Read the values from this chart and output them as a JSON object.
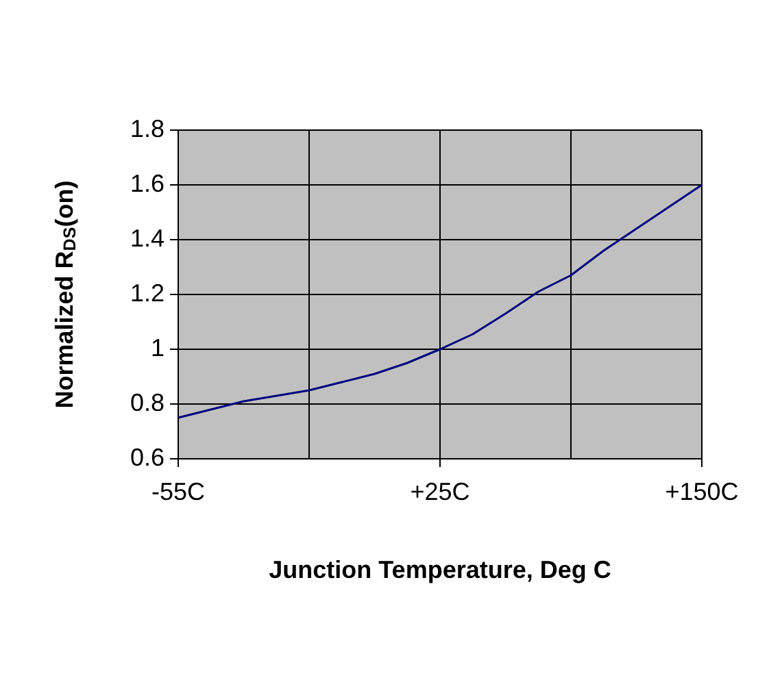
{
  "chart_data": {
    "type": "line",
    "xlabel": "Junction Temperature, Deg C",
    "ylabel": "Normalized R$_{DS}$(on)",
    "categories": [
      "-55C",
      null,
      null,
      null,
      null,
      null,
      null,
      null,
      "+25C",
      null,
      null,
      null,
      null,
      null,
      null,
      null,
      "+150C"
    ],
    "series": [
      {
        "color": "#000080",
        "values": [
          0.75,
          0.78,
          0.81,
          0.83,
          0.85,
          0.88,
          0.91,
          0.95,
          1.0,
          1.055,
          1.13,
          1.21,
          1.27,
          1.36,
          1.44,
          1.52,
          1.6
        ]
      }
    ],
    "ylim": [
      0.6,
      1.8
    ],
    "yticks": [
      0.6,
      0.8,
      1,
      1.2,
      1.4,
      1.6,
      1.8
    ],
    "grid": true,
    "legend": false,
    "marker": "none",
    "line_style": "solid"
  }
}
